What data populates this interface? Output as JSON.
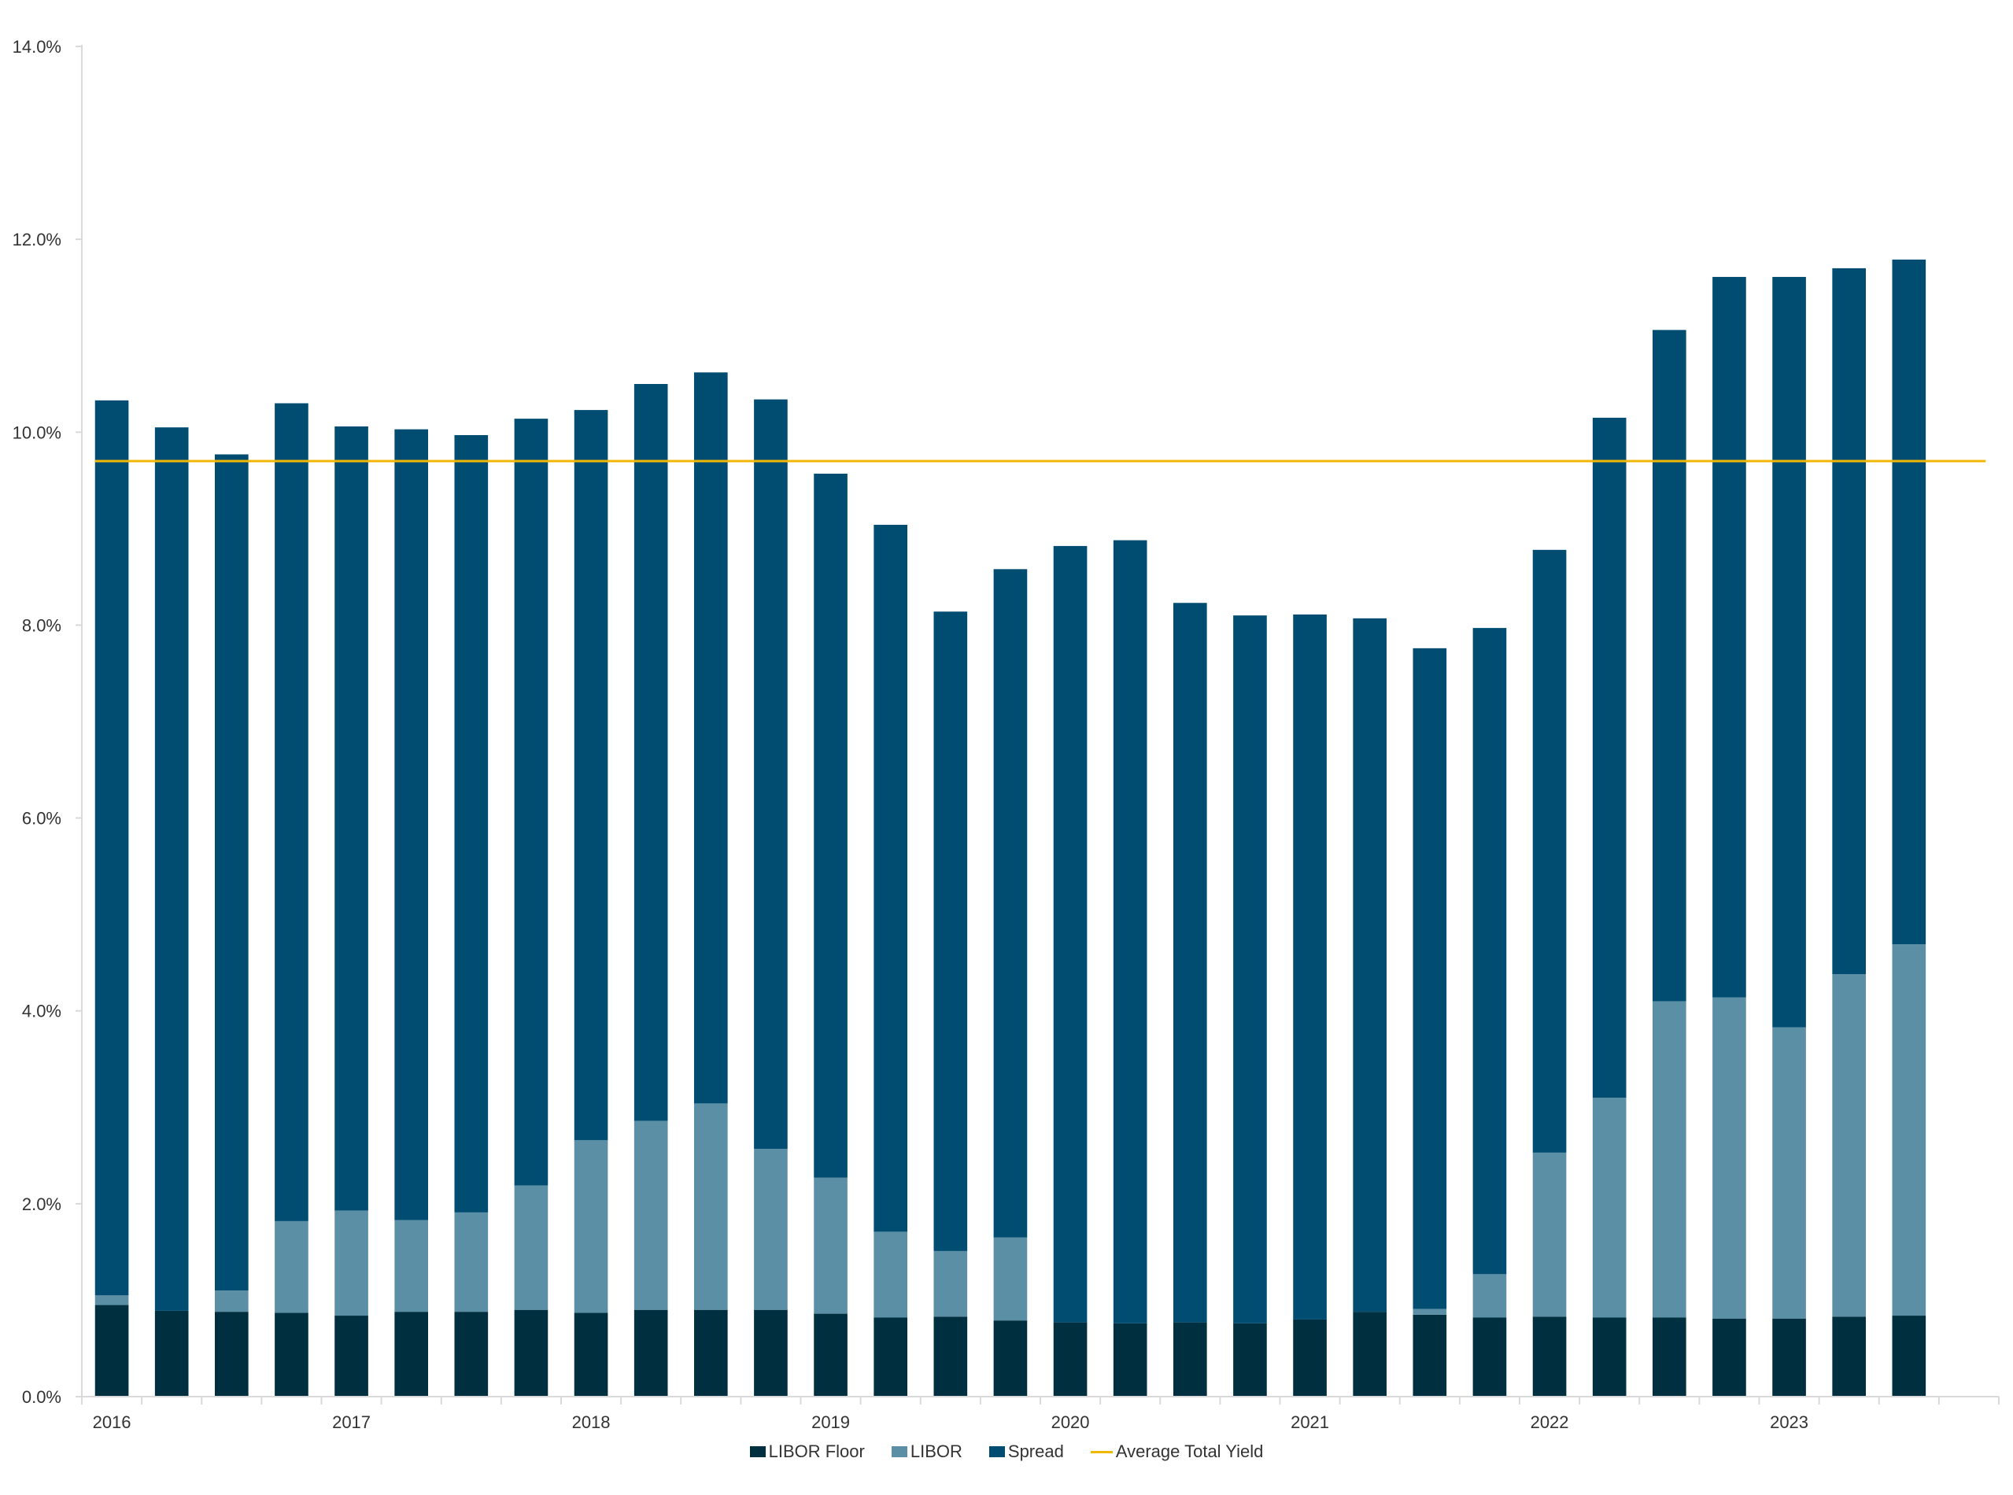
{
  "chart_data": {
    "type": "bar",
    "stacked": true,
    "categories": [
      "2016",
      "",
      "",
      "",
      "2017",
      "",
      "",
      "",
      "2018",
      "",
      "",
      "",
      "2019",
      "",
      "",
      "",
      "2020",
      "",
      "",
      "",
      "2021",
      "",
      "",
      "",
      "2022",
      "",
      "",
      "",
      "2023",
      "",
      "",
      ""
    ],
    "series": [
      {
        "name": "LIBOR Floor",
        "color": "#00303f",
        "values": [
          0.95,
          0.89,
          0.88,
          0.87,
          0.84,
          0.88,
          0.88,
          0.9,
          0.87,
          0.9,
          0.9,
          0.9,
          0.86,
          0.82,
          0.83,
          0.79,
          0.77,
          0.76,
          0.77,
          0.76,
          0.8,
          0.88,
          0.85,
          0.82,
          0.83,
          0.82,
          0.82,
          0.81,
          0.81,
          0.83,
          0.84,
          0
        ]
      },
      {
        "name": "LIBOR",
        "color": "#5b8fa6",
        "values": [
          0.1,
          0,
          0.22,
          0.95,
          1.09,
          0.95,
          1.03,
          1.29,
          1.79,
          1.96,
          2.14,
          1.67,
          1.41,
          0.89,
          0.68,
          0.86,
          0,
          0,
          0,
          0,
          0,
          0,
          0.06,
          0.45,
          1.7,
          2.28,
          3.28,
          3.33,
          3.02,
          3.55,
          3.85,
          0
        ]
      },
      {
        "name": "Spread",
        "color": "#004d71",
        "values": [
          9.28,
          9.16,
          8.67,
          8.48,
          8.13,
          8.2,
          8.06,
          7.95,
          7.57,
          7.64,
          7.58,
          7.77,
          7.3,
          7.33,
          6.63,
          6.93,
          8.05,
          8.12,
          7.46,
          7.34,
          7.31,
          7.19,
          6.85,
          6.7,
          6.25,
          7.05,
          6.96,
          7.47,
          7.78,
          7.32,
          7.1,
          0
        ]
      }
    ],
    "reference_lines": [
      {
        "name": "Average Total Yield",
        "value": 9.7,
        "color": "#f2b705"
      }
    ],
    "ylim": [
      0,
      14
    ],
    "yticks": [
      "0.0%",
      "2.0%",
      "4.0%",
      "6.0%",
      "8.0%",
      "10.0%",
      "12.0%",
      "14.0%"
    ],
    "xlabel": "",
    "ylabel": "",
    "title": "",
    "grid": false,
    "legend_position": "bottom"
  }
}
